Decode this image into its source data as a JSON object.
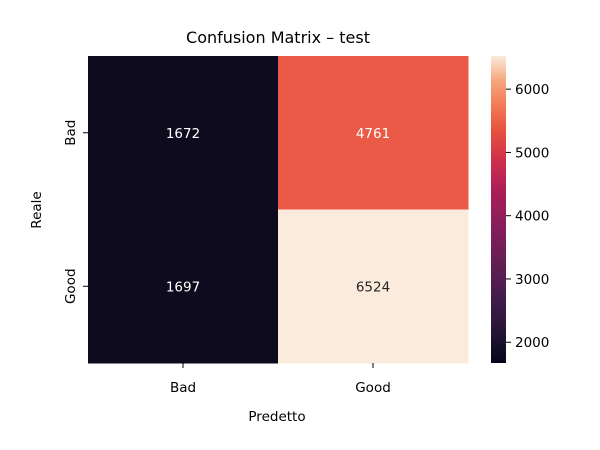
{
  "chart_data": {
    "type": "heatmap",
    "title": "Confusion Matrix – test",
    "xlabel": "Predetto",
    "ylabel": "Reale",
    "x_categories": [
      "Bad",
      "Good"
    ],
    "y_categories": [
      "Bad",
      "Good"
    ],
    "values": [
      [
        1672,
        4761
      ],
      [
        1697,
        6524
      ]
    ],
    "colorbar": {
      "range": [
        1672,
        6524
      ],
      "ticks": [
        2000,
        3000,
        4000,
        5000,
        6000
      ],
      "colormap": "rocket"
    },
    "colors": {
      "cell_bad_bad": "#0f0b1e",
      "cell_bad_good": "#eb5a46",
      "cell_good_bad": "#0f0b1e",
      "cell_good_good": "#faebdd",
      "text_on_dark": "#ffffff",
      "text_on_light": "#262626"
    }
  }
}
